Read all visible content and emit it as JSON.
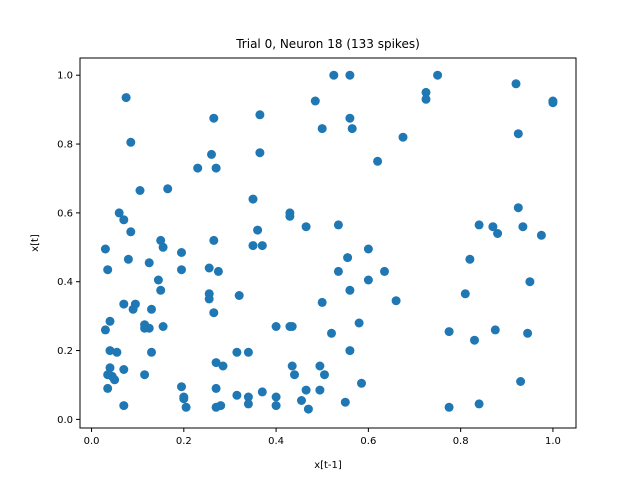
{
  "chart_data": {
    "type": "scatter",
    "title": "Trial 0, Neuron 18 (133 spikes)",
    "xlabel": "x[t-1]",
    "ylabel": "x[t]",
    "xlim": [
      -0.025,
      1.05
    ],
    "ylim": [
      -0.025,
      1.05
    ],
    "xticks": [
      "0.0",
      "0.2",
      "0.4",
      "0.6",
      "0.8",
      "1.0"
    ],
    "yticks": [
      "0.0",
      "0.2",
      "0.4",
      "0.6",
      "0.8",
      "1.0"
    ],
    "grid": false,
    "marker_color": "#1f77b4",
    "points": [
      [
        0.075,
        0.935
      ],
      [
        0.085,
        0.805
      ],
      [
        0.105,
        0.665
      ],
      [
        0.165,
        0.67
      ],
      [
        0.06,
        0.6
      ],
      [
        0.07,
        0.58
      ],
      [
        0.085,
        0.545
      ],
      [
        0.03,
        0.495
      ],
      [
        0.035,
        0.435
      ],
      [
        0.08,
        0.465
      ],
      [
        0.125,
        0.455
      ],
      [
        0.15,
        0.52
      ],
      [
        0.155,
        0.5
      ],
      [
        0.145,
        0.405
      ],
      [
        0.15,
        0.375
      ],
      [
        0.195,
        0.485
      ],
      [
        0.195,
        0.435
      ],
      [
        0.07,
        0.335
      ],
      [
        0.09,
        0.32
      ],
      [
        0.095,
        0.335
      ],
      [
        0.04,
        0.285
      ],
      [
        0.03,
        0.26
      ],
      [
        0.115,
        0.275
      ],
      [
        0.115,
        0.265
      ],
      [
        0.125,
        0.265
      ],
      [
        0.13,
        0.32
      ],
      [
        0.155,
        0.27
      ],
      [
        0.13,
        0.195
      ],
      [
        0.04,
        0.2
      ],
      [
        0.055,
        0.195
      ],
      [
        0.04,
        0.15
      ],
      [
        0.035,
        0.13
      ],
      [
        0.05,
        0.115
      ],
      [
        0.045,
        0.125
      ],
      [
        0.07,
        0.145
      ],
      [
        0.035,
        0.09
      ],
      [
        0.07,
        0.04
      ],
      [
        0.115,
        0.13
      ],
      [
        0.195,
        0.095
      ],
      [
        0.2,
        0.065
      ],
      [
        0.2,
        0.06
      ],
      [
        0.205,
        0.035
      ],
      [
        0.23,
        0.73
      ],
      [
        0.26,
        0.77
      ],
      [
        0.265,
        0.875
      ],
      [
        0.27,
        0.73
      ],
      [
        0.265,
        0.52
      ],
      [
        0.255,
        0.44
      ],
      [
        0.275,
        0.43
      ],
      [
        0.255,
        0.365
      ],
      [
        0.255,
        0.35
      ],
      [
        0.265,
        0.31
      ],
      [
        0.32,
        0.36
      ],
      [
        0.27,
        0.165
      ],
      [
        0.285,
        0.155
      ],
      [
        0.315,
        0.195
      ],
      [
        0.34,
        0.195
      ],
      [
        0.27,
        0.09
      ],
      [
        0.27,
        0.035
      ],
      [
        0.28,
        0.04
      ],
      [
        0.315,
        0.07
      ],
      [
        0.34,
        0.065
      ],
      [
        0.34,
        0.045
      ],
      [
        0.365,
        0.885
      ],
      [
        0.365,
        0.775
      ],
      [
        0.35,
        0.64
      ],
      [
        0.36,
        0.55
      ],
      [
        0.35,
        0.505
      ],
      [
        0.37,
        0.505
      ],
      [
        0.37,
        0.08
      ],
      [
        0.4,
        0.27
      ],
      [
        0.43,
        0.6
      ],
      [
        0.43,
        0.59
      ],
      [
        0.435,
        0.27
      ],
      [
        0.43,
        0.27
      ],
      [
        0.4,
        0.065
      ],
      [
        0.4,
        0.04
      ],
      [
        0.435,
        0.155
      ],
      [
        0.44,
        0.13
      ],
      [
        0.455,
        0.055
      ],
      [
        0.465,
        0.56
      ],
      [
        0.465,
        0.085
      ],
      [
        0.47,
        0.03
      ],
      [
        0.485,
        0.925
      ],
      [
        0.5,
        0.845
      ],
      [
        0.525,
        1.0
      ],
      [
        0.56,
        1.0
      ],
      [
        0.56,
        0.875
      ],
      [
        0.565,
        0.845
      ],
      [
        0.535,
        0.565
      ],
      [
        0.555,
        0.47
      ],
      [
        0.535,
        0.43
      ],
      [
        0.56,
        0.375
      ],
      [
        0.5,
        0.34
      ],
      [
        0.52,
        0.25
      ],
      [
        0.56,
        0.2
      ],
      [
        0.495,
        0.155
      ],
      [
        0.505,
        0.13
      ],
      [
        0.495,
        0.085
      ],
      [
        0.55,
        0.05
      ],
      [
        0.585,
        0.105
      ],
      [
        0.58,
        0.28
      ],
      [
        0.6,
        0.495
      ],
      [
        0.6,
        0.405
      ],
      [
        0.62,
        0.75
      ],
      [
        0.635,
        0.43
      ],
      [
        0.66,
        0.345
      ],
      [
        0.675,
        0.82
      ],
      [
        0.725,
        0.95
      ],
      [
        0.725,
        0.93
      ],
      [
        0.75,
        1.0
      ],
      [
        0.775,
        0.255
      ],
      [
        0.775,
        0.035
      ],
      [
        0.81,
        0.365
      ],
      [
        0.82,
        0.465
      ],
      [
        0.83,
        0.23
      ],
      [
        0.84,
        0.565
      ],
      [
        0.84,
        0.045
      ],
      [
        0.87,
        0.56
      ],
      [
        0.88,
        0.54
      ],
      [
        0.875,
        0.26
      ],
      [
        0.92,
        0.975
      ],
      [
        0.925,
        0.83
      ],
      [
        0.925,
        0.615
      ],
      [
        0.93,
        0.11
      ],
      [
        0.935,
        0.56
      ],
      [
        0.945,
        0.25
      ],
      [
        0.95,
        0.4
      ],
      [
        0.975,
        0.535
      ],
      [
        1.0,
        0.925
      ],
      [
        1.0,
        0.92
      ]
    ]
  }
}
